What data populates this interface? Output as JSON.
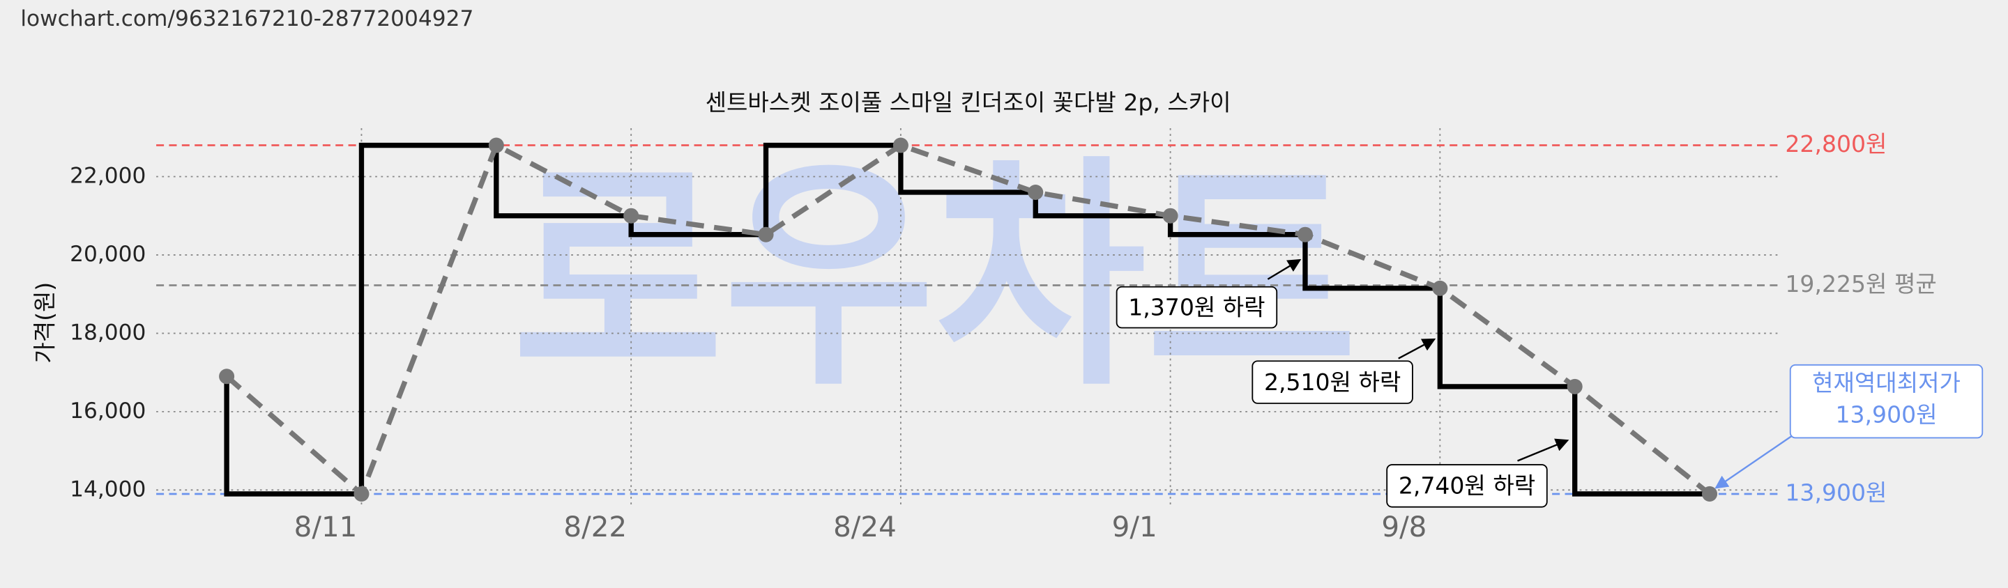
{
  "chart_data": {
    "type": "line",
    "url": "lowchart.com/9632167210-28772004927",
    "title": "센트바스켓 조이풀 스마일 킨더조이 꽃다발 2p, 스카이",
    "y_label": "가격(원)",
    "watermark": "로우차트",
    "categories": [
      null,
      "8/11",
      null,
      "8/22",
      null,
      "8/24",
      null,
      "9/1",
      null,
      "9/8",
      null,
      null
    ],
    "series": [
      {
        "color": "#777777",
        "values": [
          16900,
          13900,
          22800,
          21000,
          20520,
          22800,
          21600,
          21000,
          20520,
          19150,
          16640,
          13900
        ]
      }
    ],
    "step_color": "#000000",
    "ylim": [
      13600,
      23400
    ],
    "yticks": [
      {
        "value": 14000,
        "label": "14,000"
      },
      {
        "value": 16000,
        "label": "16,000"
      },
      {
        "value": 18000,
        "label": "18,000"
      },
      {
        "value": 20000,
        "label": "20,000"
      },
      {
        "value": 22000,
        "label": "22,000"
      }
    ],
    "grid": true,
    "ref_lines": [
      {
        "value": 22800,
        "label": "22,800원",
        "color": "#f05a5a"
      },
      {
        "value": 19225,
        "label": "19,225원 평균",
        "color": "#888888"
      },
      {
        "value": 13900,
        "label": "13,900원",
        "color": "#6a93ee"
      }
    ],
    "annotations": [
      {
        "text": "1,370원 하락"
      },
      {
        "text": "2,510원 하락"
      },
      {
        "text": "2,740원 하락"
      }
    ],
    "low_callout": {
      "lines": [
        "현재역대최저가",
        "13,900원"
      ],
      "color": "#6a93ee"
    }
  }
}
